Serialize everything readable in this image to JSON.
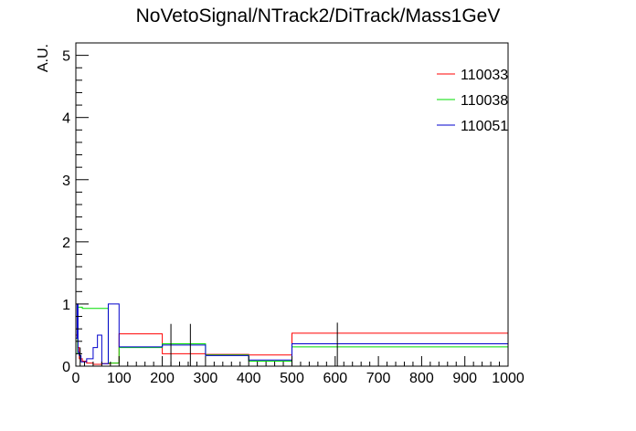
{
  "chart_data": {
    "type": "line",
    "title": "NoVetoSignal/NTrack2/DiTrack/Mass1GeV",
    "xlabel": "",
    "ylabel": "A.U.",
    "xlim": [
      0,
      1000
    ],
    "ylim": [
      0,
      5.2
    ],
    "x_ticks": [
      "0",
      "100",
      "200",
      "300",
      "400",
      "500",
      "600",
      "700",
      "800",
      "900",
      "1000"
    ],
    "y_ticks": [
      "0",
      "1",
      "2",
      "3",
      "4",
      "5"
    ],
    "legend_position": "top-right",
    "grid": false,
    "series": [
      {
        "name": "110033",
        "color": "#ff0000",
        "steps": [
          {
            "x0": 0,
            "x1": 4,
            "y": 0.5
          },
          {
            "x0": 4,
            "x1": 8,
            "y": 0.3
          },
          {
            "x0": 8,
            "x1": 15,
            "y": 0.12
          },
          {
            "x0": 15,
            "x1": 25,
            "y": 0.08
          },
          {
            "x0": 25,
            "x1": 40,
            "y": 0.05
          },
          {
            "x0": 40,
            "x1": 60,
            "y": 0.03
          },
          {
            "x0": 60,
            "x1": 80,
            "y": 0.04
          },
          {
            "x0": 80,
            "x1": 100,
            "y": 0.05
          },
          {
            "x0": 100,
            "x1": 200,
            "y": 0.52
          },
          {
            "x0": 200,
            "x1": 300,
            "y": 0.2
          },
          {
            "x0": 300,
            "x1": 400,
            "y": 0.19
          },
          {
            "x0": 400,
            "x1": 500,
            "y": 0.18
          },
          {
            "x0": 500,
            "x1": 1000,
            "y": 0.53
          }
        ]
      },
      {
        "name": "110038",
        "color": "#00dd00",
        "steps": [
          {
            "x0": 0,
            "x1": 4,
            "y": 0.2
          },
          {
            "x0": 4,
            "x1": 15,
            "y": 0.95
          },
          {
            "x0": 15,
            "x1": 75,
            "y": 0.93
          },
          {
            "x0": 75,
            "x1": 100,
            "y": 0.05
          },
          {
            "x0": 100,
            "x1": 200,
            "y": 0.3
          },
          {
            "x0": 200,
            "x1": 300,
            "y": 0.36
          },
          {
            "x0": 300,
            "x1": 400,
            "y": 0.18
          },
          {
            "x0": 400,
            "x1": 500,
            "y": 0.08
          },
          {
            "x0": 500,
            "x1": 1000,
            "y": 0.31
          }
        ]
      },
      {
        "name": "110051",
        "color": "#0000cc",
        "steps": [
          {
            "x0": 0,
            "x1": 3,
            "y": 0.45
          },
          {
            "x0": 3,
            "x1": 5,
            "y": 1.0
          },
          {
            "x0": 5,
            "x1": 8,
            "y": 0.22
          },
          {
            "x0": 8,
            "x1": 12,
            "y": 0.17
          },
          {
            "x0": 12,
            "x1": 25,
            "y": 0.07
          },
          {
            "x0": 25,
            "x1": 40,
            "y": 0.12
          },
          {
            "x0": 40,
            "x1": 50,
            "y": 0.3
          },
          {
            "x0": 50,
            "x1": 60,
            "y": 0.5
          },
          {
            "x0": 60,
            "x1": 75,
            "y": 0.04
          },
          {
            "x0": 75,
            "x1": 100,
            "y": 1.0
          },
          {
            "x0": 100,
            "x1": 200,
            "y": 0.31
          },
          {
            "x0": 200,
            "x1": 300,
            "y": 0.34
          },
          {
            "x0": 300,
            "x1": 400,
            "y": 0.17
          },
          {
            "x0": 400,
            "x1": 500,
            "y": 0.1
          },
          {
            "x0": 500,
            "x1": 1000,
            "y": 0.36
          }
        ]
      }
    ],
    "error_bars": [
      {
        "x": 10,
        "y0": 0.0,
        "y1": 0.3
      },
      {
        "x": 220,
        "y0": 0.0,
        "y1": 0.68
      },
      {
        "x": 265,
        "y0": 0.0,
        "y1": 0.68
      },
      {
        "x": 605,
        "y0": 0.0,
        "y1": 0.7
      }
    ]
  }
}
